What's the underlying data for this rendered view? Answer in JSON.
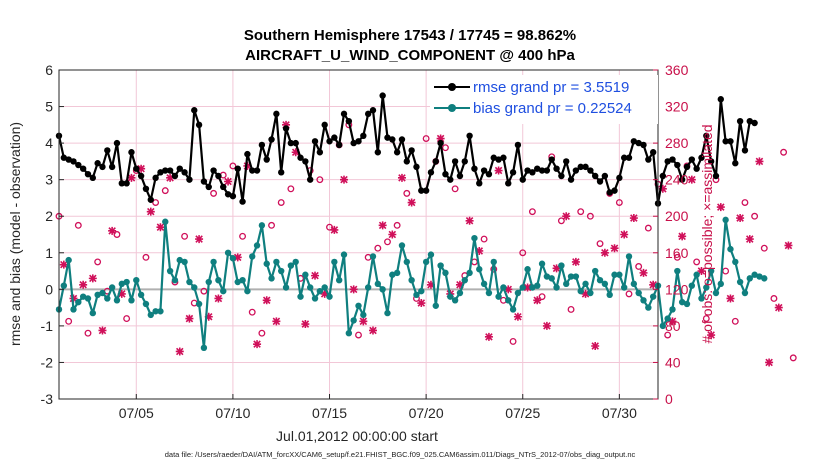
{
  "chart_data": {
    "type": "line",
    "title": "Southern Hemisphere 17543 / 17745 = 98.862%",
    "subtitle": "AIRCRAFT_U_WIND_COMPONENT @ 400 hPa",
    "xlabel": "Jul.01,2012 00:00:00 start",
    "ylabel": "rmse and bias (model - observation)",
    "ylabel_right": "# of obs: o=possible; ×=assimilated",
    "footer": "data file: /Users/raeder/DAI/ATM_forcXX/CAM6_setup/f.e21.FHIST_BGC.f09_025.CAM6assim.011/Diags_NTrS_2012-07/obs_diag_output.nc",
    "x_ticks": [
      "07/05",
      "07/10",
      "07/15",
      "07/20",
      "07/25",
      "07/30"
    ],
    "x_tick_days": [
      5,
      10,
      15,
      20,
      25,
      30
    ],
    "xlim": [
      1,
      32
    ],
    "ylim": [
      -3,
      6
    ],
    "y_ticks": [
      "-3",
      "-2",
      "-1",
      "0",
      "1",
      "2",
      "3",
      "4",
      "5",
      "6"
    ],
    "ylim_right": [
      0,
      360
    ],
    "y_ticks_right": [
      "0",
      "40",
      "80",
      "120",
      "160",
      "200",
      "240",
      "280",
      "320",
      "360"
    ],
    "series": [
      {
        "name": "rmse grand pr = 3.5519",
        "color": "#000000",
        "x_start": 1.0,
        "x_step": 0.25,
        "values": [
          4.2,
          3.6,
          3.55,
          3.5,
          3.4,
          3.3,
          3.15,
          3.05,
          3.45,
          3.35,
          3.8,
          3.35,
          4.0,
          2.9,
          2.9,
          3.75,
          3.3,
          3.1,
          2.75,
          2.45,
          3.05,
          3.2,
          3.25,
          3.25,
          3.1,
          3.3,
          3.2,
          3.0,
          4.9,
          4.5,
          2.95,
          2.8,
          3.25,
          3.1,
          2.8,
          2.6,
          2.55,
          3.3,
          2.4,
          3.7,
          3.25,
          3.25,
          3.95,
          3.55,
          4.1,
          4.8,
          3.2,
          4.4,
          4.0,
          4.0,
          3.6,
          3.5,
          3.0,
          4.05,
          3.75,
          4.5,
          4.05,
          4.15,
          3.95,
          4.8,
          4.6,
          4.0,
          4.05,
          4.2,
          4.8,
          4.9,
          3.75,
          5.3,
          4.15,
          4.1,
          3.75,
          4.1,
          3.5,
          3.8,
          3.35,
          2.7,
          2.7,
          3.2,
          3.5,
          4.0,
          3.15,
          3.0,
          3.5,
          3.1,
          3.5,
          4.2,
          3.3,
          2.9,
          3.25,
          3.15,
          3.6,
          3.55,
          3.6,
          2.9,
          3.2,
          3.95,
          3.0,
          3.25,
          3.2,
          3.3,
          3.25,
          3.25,
          3.55,
          3.3,
          3.1,
          3.5,
          3.0,
          3.25,
          3.35,
          3.35,
          3.25,
          3.1,
          2.95,
          3.1,
          2.65,
          2.7,
          3.05,
          3.6,
          3.6,
          4.05,
          4.0,
          3.95,
          3.55,
          3.75,
          2.35,
          3.1,
          3.5,
          3.55,
          3.4,
          3.0,
          3.35,
          3.55,
          3.3,
          3.6,
          4.2,
          3.5,
          3.1,
          5.2,
          4.05,
          4.05,
          3.45,
          4.6,
          3.8,
          4.6,
          4.55
        ]
      },
      {
        "name": "bias grand pr = 0.22524",
        "color": "#0f7f7f",
        "x_start": 1.0,
        "x_step": 0.25,
        "values": [
          -0.55,
          0.1,
          0.8,
          -0.55,
          -0.35,
          -0.2,
          -0.25,
          -0.65,
          -0.15,
          -0.1,
          -0.25,
          0.05,
          -0.3,
          0.15,
          0.2,
          -0.3,
          0.25,
          -0.15,
          -0.4,
          -0.7,
          -0.6,
          -0.6,
          1.85,
          0.5,
          0.25,
          0.8,
          0.75,
          0.2,
          0.05,
          -0.4,
          -1.6,
          0.2,
          0.75,
          0.25,
          -0.05,
          1.0,
          0.85,
          0.2,
          0.25,
          -0.05,
          0.9,
          1.2,
          1.75,
          0.7,
          0.3,
          0.75,
          0.5,
          0.05,
          0.65,
          0.75,
          -0.2,
          0.4,
          0.05,
          -0.25,
          -0.05,
          0.05,
          -0.2,
          0.75,
          0.25,
          0.95,
          -1.2,
          -0.85,
          -0.45,
          -0.7,
          0.05,
          0.9,
          0.15,
          0.0,
          -0.65,
          0.4,
          0.45,
          1.2,
          0.75,
          0.25,
          -0.15,
          -0.05,
          0.75,
          0.95,
          -0.45,
          0.65,
          0.45,
          -0.2,
          -0.3,
          -0.1,
          0.25,
          0.45,
          1.4,
          0.55,
          0.15,
          -0.1,
          0.75,
          -0.2,
          0.05,
          -0.3,
          -0.55,
          -0.1,
          0.05,
          0.55,
          0.05,
          0.1,
          0.7,
          0.35,
          0.3,
          0.05,
          0.65,
          0.15,
          0.35,
          0.35,
          -0.05,
          0.15,
          -0.1,
          0.5,
          0.25,
          0.15,
          -0.15,
          0.4,
          0.4,
          0.05,
          0.9,
          0.15,
          -0.1,
          -0.3,
          -0.5,
          -0.2,
          0.1,
          -1.0,
          -0.8,
          -0.55,
          0.5,
          -0.35,
          -0.4,
          0.1,
          0.4,
          -0.25,
          0.05,
          0.5,
          -0.1,
          0.15,
          1.9,
          1.1,
          0.75,
          0.2,
          -0.1,
          0.3,
          0.4,
          0.35,
          0.3
        ]
      }
    ],
    "obs_possible": {
      "color": "#d0105a",
      "x_start": 1.0,
      "x_step": 0.5,
      "values": [
        200,
        85,
        190,
        72,
        150,
        118,
        180,
        88,
        250,
        155,
        215,
        228,
        128,
        178,
        105,
        118,
        225,
        245,
        255,
        178,
        95,
        72,
        190,
        215,
        230,
        132,
        250,
        240,
        188,
        278,
        300,
        70,
        155,
        165,
        172,
        190,
        225,
        110,
        285,
        260,
        275,
        230,
        135,
        150,
        175,
        142,
        108,
        63,
        160,
        205,
        112,
        265,
        195,
        98,
        205,
        200,
        170,
        225,
        215,
        115,
        145,
        187,
        235,
        70,
        155,
        255,
        150,
        88,
        240,
        140,
        85,
        215,
        200,
        165,
        110,
        270,
        45
      ]
    },
    "obs_assimilated": {
      "color": "#d0105a",
      "x_start": 1.25,
      "x_step": 0.5,
      "values": [
        147,
        110,
        125,
        132,
        75,
        184,
        115,
        242,
        252,
        205,
        188,
        242,
        52,
        88,
        175,
        90,
        110,
        238,
        155,
        255,
        60,
        108,
        85,
        300,
        270,
        82,
        135,
        115,
        185,
        240,
        120,
        85,
        75,
        190,
        180,
        242,
        215,
        105,
        125,
        285,
        115,
        125,
        195,
        162,
        68,
        250,
        120,
        90,
        122,
        108,
        80,
        143,
        200,
        150,
        115,
        58,
        160,
        165,
        180,
        198,
        138,
        125,
        230,
        85,
        178,
        240,
        140,
        70,
        210,
        110,
        198,
        175,
        260,
        40,
        100,
        168
      ]
    }
  }
}
